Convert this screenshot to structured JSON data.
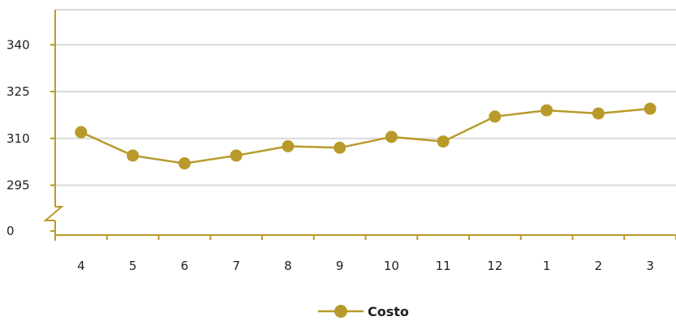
{
  "chart_data": {
    "type": "line",
    "categories": [
      "4",
      "5",
      "6",
      "7",
      "8",
      "9",
      "10",
      "11",
      "12",
      "1",
      "2",
      "3"
    ],
    "series": [
      {
        "name": "Costo",
        "values": [
          312,
          304.5,
          302,
          304.5,
          307.5,
          307,
          310.5,
          309,
          317,
          319,
          318,
          319.5
        ]
      }
    ],
    "y_ticks": [
      0,
      295,
      310,
      325,
      340
    ],
    "axis_break": {
      "from": 0,
      "to": 280
    },
    "ylim": [
      0,
      350
    ],
    "grid": true,
    "legend": "bottom-center",
    "colors": {
      "series": "#b89a2a",
      "grid": "#d9d9d9",
      "axis": "#b89a2a"
    }
  }
}
